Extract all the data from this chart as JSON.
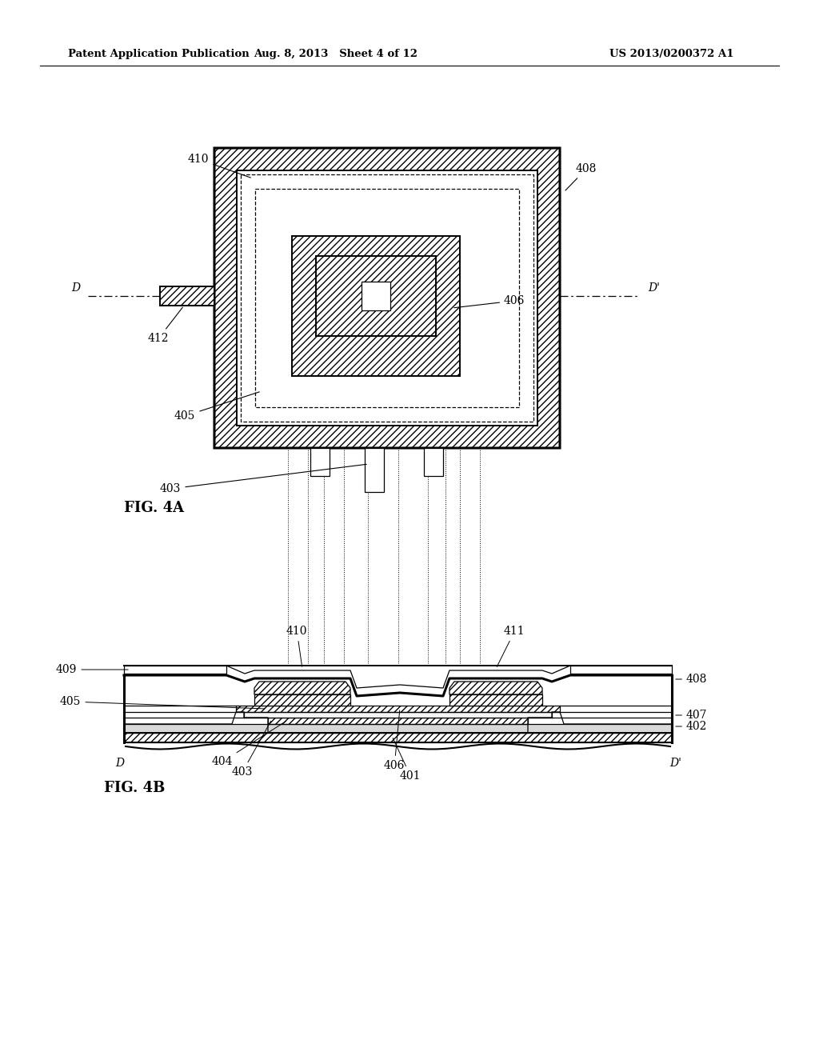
{
  "title_left": "Patent Application Publication",
  "title_mid": "Aug. 8, 2013   Sheet 4 of 12",
  "title_right": "US 2013/0200372 A1",
  "fig4a_label": "FIG. 4A",
  "fig4b_label": "FIG. 4B",
  "bg_color": "#ffffff",
  "line_color": "#000000",
  "label_fontsize": 10,
  "header_fontsize": 9.5
}
